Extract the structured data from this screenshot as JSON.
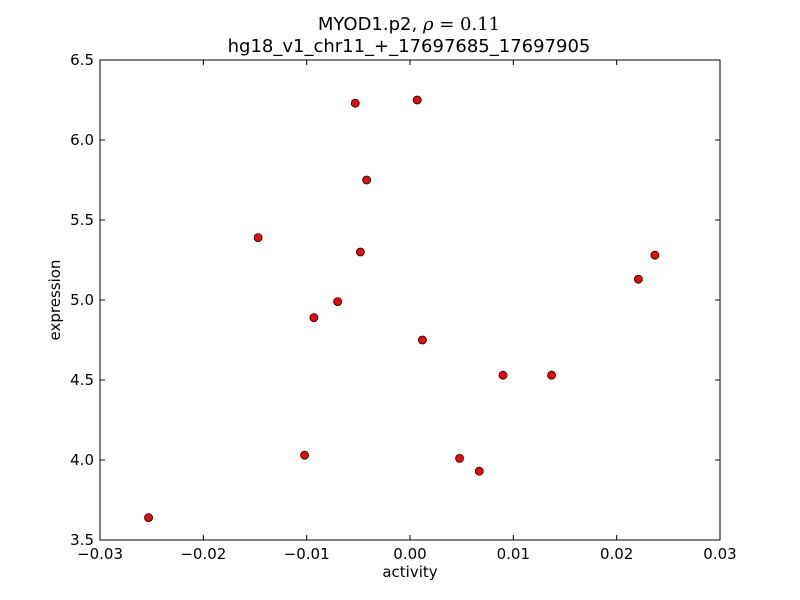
{
  "chart_data": {
    "type": "scatter",
    "title_line1_prefix": "MYOD1.p2, ",
    "title_rho_symbol": "ρ",
    "title_rho_value": " = 0.11",
    "title_line2": "hg18_v1_chr11_+_17697685_17697905",
    "xlabel": "activity",
    "ylabel": "expression",
    "xlim": [
      -0.03,
      0.03
    ],
    "ylim": [
      3.5,
      6.5
    ],
    "xticks": [
      -0.03,
      -0.02,
      -0.01,
      0.0,
      0.01,
      0.02,
      0.03
    ],
    "xtick_labels": [
      "−0.03",
      "−0.02",
      "−0.01",
      "0.00",
      "0.01",
      "0.02",
      "0.03"
    ],
    "yticks": [
      3.5,
      4.0,
      4.5,
      5.0,
      5.5,
      6.0,
      6.5
    ],
    "ytick_labels": [
      "3.5",
      "4.0",
      "4.5",
      "5.0",
      "5.5",
      "6.0",
      "6.5"
    ],
    "grid": false,
    "marker_color": "#ff0000",
    "marker_edge": "#000000",
    "points": [
      {
        "x": -0.0253,
        "y": 3.64
      },
      {
        "x": -0.0147,
        "y": 5.39
      },
      {
        "x": -0.0102,
        "y": 4.03
      },
      {
        "x": -0.0093,
        "y": 4.89
      },
      {
        "x": -0.007,
        "y": 4.99
      },
      {
        "x": -0.0053,
        "y": 6.23
      },
      {
        "x": -0.0048,
        "y": 5.3
      },
      {
        "x": -0.0042,
        "y": 5.75
      },
      {
        "x": 0.0007,
        "y": 6.25
      },
      {
        "x": 0.0012,
        "y": 4.75
      },
      {
        "x": 0.0048,
        "y": 4.01
      },
      {
        "x": 0.0067,
        "y": 3.93
      },
      {
        "x": 0.009,
        "y": 4.53
      },
      {
        "x": 0.0137,
        "y": 4.53
      },
      {
        "x": 0.0221,
        "y": 5.13
      },
      {
        "x": 0.0237,
        "y": 5.28
      }
    ]
  }
}
